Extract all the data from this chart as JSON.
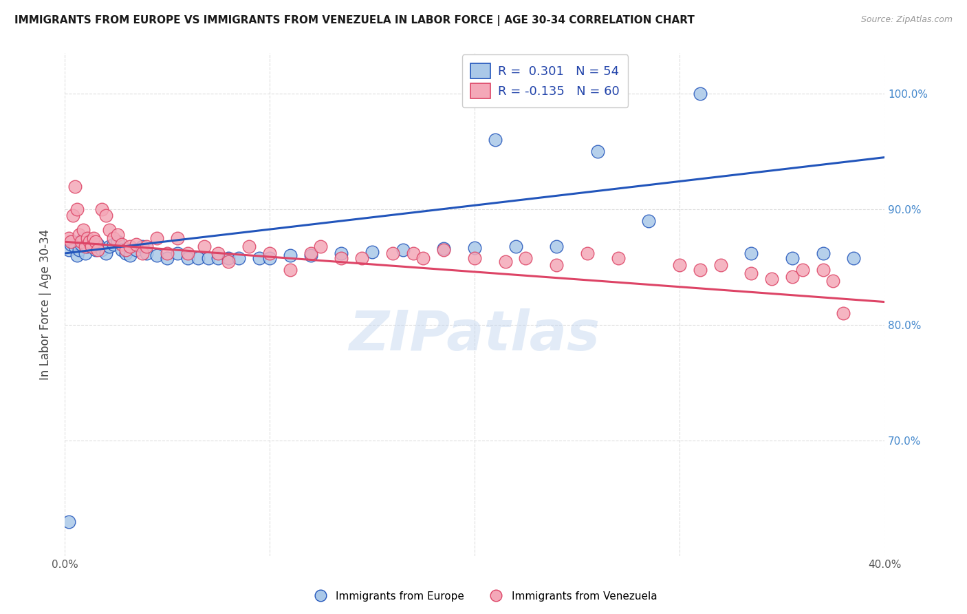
{
  "title": "IMMIGRANTS FROM EUROPE VS IMMIGRANTS FROM VENEZUELA IN LABOR FORCE | AGE 30-34 CORRELATION CHART",
  "source": "Source: ZipAtlas.com",
  "ylabel": "In Labor Force | Age 30-34",
  "watermark": "ZIPatlas",
  "legend_r_europe": "R =  0.301",
  "legend_n_europe": "N = 54",
  "legend_r_venezuela": "R = -0.135",
  "legend_n_venezuela": "N = 60",
  "xmin": 0.0,
  "xmax": 0.4,
  "ymin": 0.6,
  "ymax": 1.035,
  "yticks": [
    0.7,
    0.8,
    0.9,
    1.0
  ],
  "ytick_labels": [
    "70.0%",
    "80.0%",
    "90.0%",
    "100.0%"
  ],
  "xticks": [
    0.0,
    0.1,
    0.2,
    0.3,
    0.4
  ],
  "xtick_labels": [
    "0.0%",
    "",
    "",
    "",
    "40.0%"
  ],
  "color_europe": "#aac8e8",
  "color_venezuela": "#f4a8b8",
  "line_color_europe": "#2255bb",
  "line_color_venezuela": "#dd4466",
  "europe_x": [
    0.002,
    0.003,
    0.004,
    0.005,
    0.006,
    0.007,
    0.008,
    0.009,
    0.01,
    0.011,
    0.012,
    0.013,
    0.015,
    0.016,
    0.018,
    0.02,
    0.022,
    0.024,
    0.026,
    0.028,
    0.03,
    0.032,
    0.035,
    0.038,
    0.04,
    0.045,
    0.05,
    0.055,
    0.06,
    0.065,
    0.07,
    0.075,
    0.08,
    0.085,
    0.095,
    0.1,
    0.11,
    0.12,
    0.135,
    0.15,
    0.165,
    0.185,
    0.2,
    0.21,
    0.22,
    0.24,
    0.26,
    0.285,
    0.31,
    0.335,
    0.355,
    0.37,
    0.385,
    0.002
  ],
  "europe_y": [
    0.865,
    0.87,
    0.872,
    0.868,
    0.86,
    0.865,
    0.87,
    0.875,
    0.862,
    0.868,
    0.872,
    0.868,
    0.865,
    0.87,
    0.865,
    0.862,
    0.868,
    0.87,
    0.872,
    0.865,
    0.862,
    0.86,
    0.865,
    0.868,
    0.862,
    0.86,
    0.858,
    0.862,
    0.858,
    0.858,
    0.858,
    0.858,
    0.858,
    0.858,
    0.858,
    0.858,
    0.86,
    0.86,
    0.862,
    0.863,
    0.865,
    0.866,
    0.867,
    0.96,
    0.868,
    0.868,
    0.95,
    0.89,
    1.0,
    0.862,
    0.858,
    0.862,
    0.858,
    0.63
  ],
  "venezuela_x": [
    0.002,
    0.003,
    0.004,
    0.005,
    0.006,
    0.007,
    0.008,
    0.009,
    0.01,
    0.011,
    0.012,
    0.013,
    0.014,
    0.015,
    0.016,
    0.018,
    0.02,
    0.022,
    0.024,
    0.026,
    0.028,
    0.03,
    0.032,
    0.035,
    0.038,
    0.04,
    0.045,
    0.05,
    0.055,
    0.06,
    0.068,
    0.075,
    0.08,
    0.09,
    0.1,
    0.11,
    0.12,
    0.125,
    0.135,
    0.145,
    0.16,
    0.17,
    0.175,
    0.185,
    0.2,
    0.215,
    0.225,
    0.24,
    0.255,
    0.27,
    0.3,
    0.31,
    0.32,
    0.335,
    0.345,
    0.355,
    0.36,
    0.37,
    0.375,
    0.38
  ],
  "venezuela_y": [
    0.875,
    0.872,
    0.895,
    0.92,
    0.9,
    0.878,
    0.872,
    0.882,
    0.868,
    0.875,
    0.872,
    0.868,
    0.875,
    0.872,
    0.865,
    0.9,
    0.895,
    0.882,
    0.875,
    0.878,
    0.87,
    0.865,
    0.868,
    0.87,
    0.862,
    0.868,
    0.875,
    0.862,
    0.875,
    0.862,
    0.868,
    0.862,
    0.855,
    0.868,
    0.862,
    0.848,
    0.862,
    0.868,
    0.858,
    0.858,
    0.862,
    0.862,
    0.858,
    0.865,
    0.858,
    0.855,
    0.858,
    0.852,
    0.862,
    0.858,
    0.852,
    0.848,
    0.852,
    0.845,
    0.84,
    0.842,
    0.848,
    0.848,
    0.838,
    0.81
  ],
  "background_color": "#ffffff",
  "grid_color": "#dddddd"
}
